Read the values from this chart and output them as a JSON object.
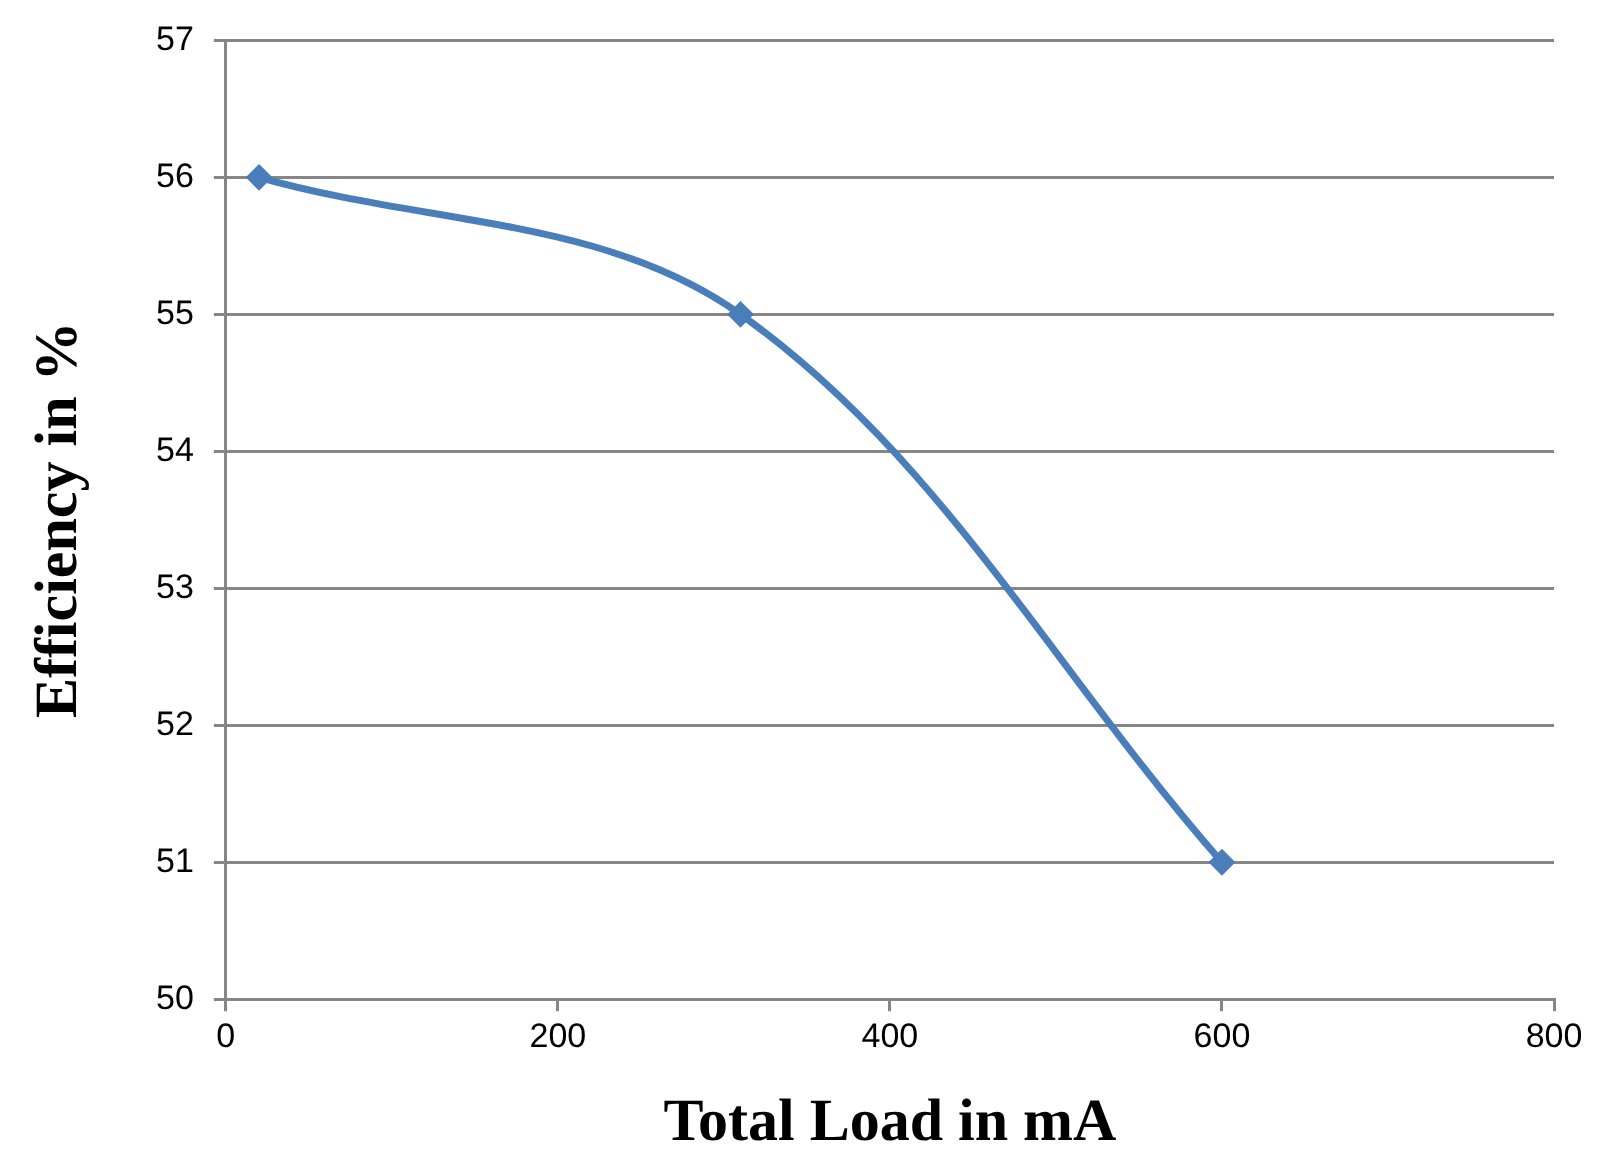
{
  "chart_data": {
    "type": "line",
    "xlabel": "Total Load in mA",
    "ylabel": "Efficiency in %",
    "x": [
      20,
      310,
      600
    ],
    "series": [
      {
        "color": "#4a7ebb",
        "values": [
          56,
          55,
          51
        ]
      }
    ],
    "xlim": [
      0,
      800
    ],
    "xticks": [
      0,
      200,
      400,
      600,
      800
    ],
    "ylim": [
      50,
      57
    ],
    "yticks": [
      50,
      51,
      52,
      53,
      54,
      55,
      56,
      57
    ],
    "grid": "y",
    "legend": false,
    "marker": "diamond",
    "line_style": "solid"
  }
}
